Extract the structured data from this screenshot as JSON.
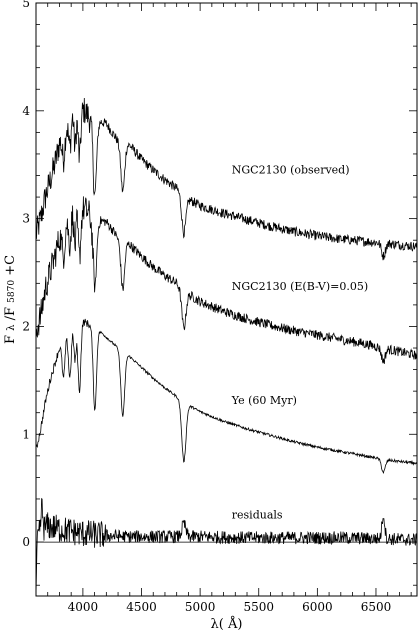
{
  "chart_data": {
    "type": "line",
    "xlabel": "λ( Å)",
    "ylabel": "F_λ/F_5870 + C",
    "ylabel_main": "F",
    "ylabel_sub1": "λ",
    "ylabel_slash": "/F",
    "ylabel_sub2": "5870",
    "ylabel_tail": "+C",
    "xlim": [
      3600,
      6850
    ],
    "ylim": [
      -0.5,
      5
    ],
    "x_ticks": [
      4000,
      4500,
      5000,
      5500,
      6000,
      6500
    ],
    "x_tick_labels": [
      "4000",
      "4500",
      "5000",
      "5500",
      "6000",
      "6500"
    ],
    "y_ticks": [
      0,
      1,
      2,
      3,
      4,
      5
    ],
    "y_tick_labels": [
      "0",
      "1",
      "2",
      "3",
      "4",
      "5"
    ],
    "zero_line": 0,
    "grid": false,
    "legend": "none",
    "series": [
      {
        "name": "NGC2130 (observed)",
        "label_x": 5270,
        "label_y": 3.42,
        "noise": 0.045,
        "points": [
          [
            3600,
            2.85
          ],
          [
            3640,
            3.0
          ],
          [
            3680,
            3.2
          ],
          [
            3720,
            3.35
          ],
          [
            3760,
            3.5
          ],
          [
            3800,
            3.7
          ],
          [
            3850,
            3.85
          ],
          [
            3900,
            4.0
          ],
          [
            3950,
            4.1
          ],
          [
            4000,
            4.02
          ],
          [
            4050,
            3.95
          ],
          [
            4100,
            3.78
          ],
          [
            4150,
            3.9
          ],
          [
            4200,
            3.88
          ],
          [
            4250,
            3.8
          ],
          [
            4300,
            3.72
          ],
          [
            4400,
            3.68
          ],
          [
            4500,
            3.55
          ],
          [
            4600,
            3.45
          ],
          [
            4700,
            3.36
          ],
          [
            4800,
            3.28
          ],
          [
            4900,
            3.18
          ],
          [
            5000,
            3.12
          ],
          [
            5200,
            3.05
          ],
          [
            5400,
            2.99
          ],
          [
            5600,
            2.93
          ],
          [
            5800,
            2.88
          ],
          [
            6000,
            2.84
          ],
          [
            6200,
            2.81
          ],
          [
            6400,
            2.79
          ],
          [
            6600,
            2.77
          ],
          [
            6850,
            2.74
          ]
        ]
      },
      {
        "name": "NGC2130 (E(B-V)=0.05)",
        "label_x": 5270,
        "label_y": 2.34,
        "noise": 0.045,
        "points": [
          [
            3600,
            1.95
          ],
          [
            3640,
            2.1
          ],
          [
            3680,
            2.35
          ],
          [
            3720,
            2.5
          ],
          [
            3760,
            2.65
          ],
          [
            3800,
            2.82
          ],
          [
            3850,
            2.95
          ],
          [
            3900,
            3.1
          ],
          [
            3950,
            3.18
          ],
          [
            4000,
            3.1
          ],
          [
            4050,
            3.05
          ],
          [
            4100,
            2.9
          ],
          [
            4150,
            2.98
          ],
          [
            4200,
            2.97
          ],
          [
            4250,
            2.9
          ],
          [
            4300,
            2.82
          ],
          [
            4400,
            2.76
          ],
          [
            4500,
            2.65
          ],
          [
            4600,
            2.55
          ],
          [
            4700,
            2.47
          ],
          [
            4800,
            2.4
          ],
          [
            4900,
            2.3
          ],
          [
            5000,
            2.23
          ],
          [
            5200,
            2.14
          ],
          [
            5400,
            2.07
          ],
          [
            5600,
            2.01
          ],
          [
            5800,
            1.96
          ],
          [
            6000,
            1.92
          ],
          [
            6200,
            1.88
          ],
          [
            6400,
            1.84
          ],
          [
            6600,
            1.79
          ],
          [
            6850,
            1.73
          ]
        ]
      },
      {
        "name": "Ye (60 Myr)",
        "label_x": 5270,
        "label_y": 1.28,
        "noise": 0.012,
        "points": [
          [
            3600,
            0.85
          ],
          [
            3640,
            1.05
          ],
          [
            3680,
            1.3
          ],
          [
            3720,
            1.5
          ],
          [
            3760,
            1.65
          ],
          [
            3800,
            1.8
          ],
          [
            3850,
            1.9
          ],
          [
            3900,
            2.0
          ],
          [
            3950,
            2.05
          ],
          [
            4000,
            2.05
          ],
          [
            4050,
            2.02
          ],
          [
            4100,
            1.98
          ],
          [
            4150,
            1.95
          ],
          [
            4200,
            1.9
          ],
          [
            4250,
            1.85
          ],
          [
            4300,
            1.8
          ],
          [
            4400,
            1.72
          ],
          [
            4500,
            1.62
          ],
          [
            4600,
            1.52
          ],
          [
            4700,
            1.43
          ],
          [
            4800,
            1.35
          ],
          [
            4900,
            1.27
          ],
          [
            5000,
            1.21
          ],
          [
            5200,
            1.12
          ],
          [
            5400,
            1.05
          ],
          [
            5600,
            0.99
          ],
          [
            5800,
            0.93
          ],
          [
            6000,
            0.88
          ],
          [
            6200,
            0.84
          ],
          [
            6400,
            0.8
          ],
          [
            6600,
            0.76
          ],
          [
            6850,
            0.73
          ]
        ]
      },
      {
        "name": "residuals",
        "label_x": 5270,
        "label_y": 0.22,
        "noise": 0.06,
        "points": [
          [
            3600,
            0.0
          ],
          [
            3640,
            0.1
          ],
          [
            3700,
            0.15
          ],
          [
            3800,
            0.12
          ],
          [
            3900,
            0.1
          ],
          [
            4000,
            0.08
          ],
          [
            4200,
            0.06
          ],
          [
            4400,
            0.05
          ],
          [
            4600,
            0.05
          ],
          [
            4800,
            0.05
          ],
          [
            5000,
            0.05
          ],
          [
            5400,
            0.04
          ],
          [
            5800,
            0.04
          ],
          [
            6200,
            0.04
          ],
          [
            6600,
            0.03
          ],
          [
            6850,
            0.02
          ]
        ]
      }
    ],
    "absorption_features": [
      {
        "x": 3835,
        "depth": 0.25,
        "width": 12
      },
      {
        "x": 3889,
        "depth": 0.3,
        "width": 12
      },
      {
        "x": 3933,
        "depth": 0.4,
        "width": 10
      },
      {
        "x": 3970,
        "depth": 0.5,
        "width": 12
      },
      {
        "x": 4102,
        "depth": 0.55,
        "width": 14
      },
      {
        "x": 4340,
        "depth": 0.45,
        "width": 16
      },
      {
        "x": 4861,
        "depth": 0.35,
        "width": 18
      },
      {
        "x": 6563,
        "depth": 0.12,
        "width": 16
      }
    ],
    "ye_absorption_features": [
      {
        "x": 3835,
        "depth": 0.35,
        "width": 12
      },
      {
        "x": 3889,
        "depth": 0.45,
        "width": 12
      },
      {
        "x": 3933,
        "depth": 0.35,
        "width": 10
      },
      {
        "x": 3970,
        "depth": 0.65,
        "width": 12
      },
      {
        "x": 4102,
        "depth": 0.75,
        "width": 14
      },
      {
        "x": 4340,
        "depth": 0.6,
        "width": 16
      },
      {
        "x": 4861,
        "depth": 0.55,
        "width": 18
      },
      {
        "x": 6563,
        "depth": 0.12,
        "width": 16
      }
    ],
    "residual_features": [
      {
        "x": 3600,
        "height": -0.45,
        "width": 6
      },
      {
        "x": 3650,
        "height": 0.2,
        "width": 8
      },
      {
        "x": 4861,
        "height": 0.12,
        "width": 16
      },
      {
        "x": 6563,
        "height": 0.22,
        "width": 12
      }
    ]
  }
}
